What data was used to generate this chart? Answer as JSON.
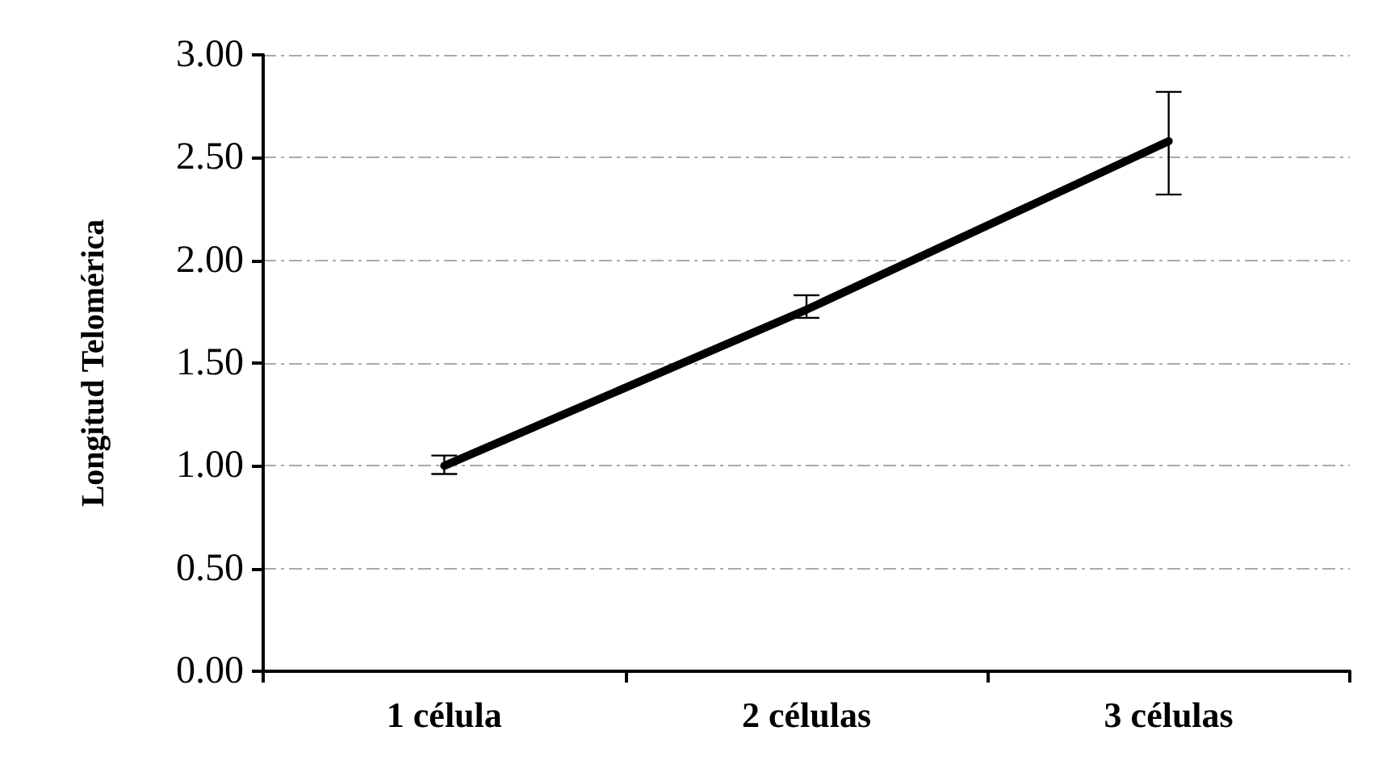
{
  "chart_data": {
    "type": "line",
    "ylabel": "Longitud Telomérica",
    "categories": [
      "1 célula",
      "2 células",
      "3 células"
    ],
    "series": [
      {
        "color": "#000000",
        "values": [
          1.0,
          1.76,
          2.58
        ],
        "errors": [
          [
            0.96,
            1.05
          ],
          [
            1.72,
            1.83
          ],
          [
            2.32,
            2.82
          ]
        ]
      }
    ],
    "ylim": [
      0,
      3
    ],
    "yticks": [
      {
        "value": 0,
        "label": "0.00"
      },
      {
        "value": 0.5,
        "label": "0.50"
      },
      {
        "value": 1,
        "label": "1.00"
      },
      {
        "value": 1.5,
        "label": "1.50"
      },
      {
        "value": 2,
        "label": "2.00"
      },
      {
        "value": 2.5,
        "label": "2.50"
      },
      {
        "value": 3,
        "label": "3.00"
      }
    ],
    "grid": "y",
    "marker": "none",
    "line_style": "solid"
  }
}
